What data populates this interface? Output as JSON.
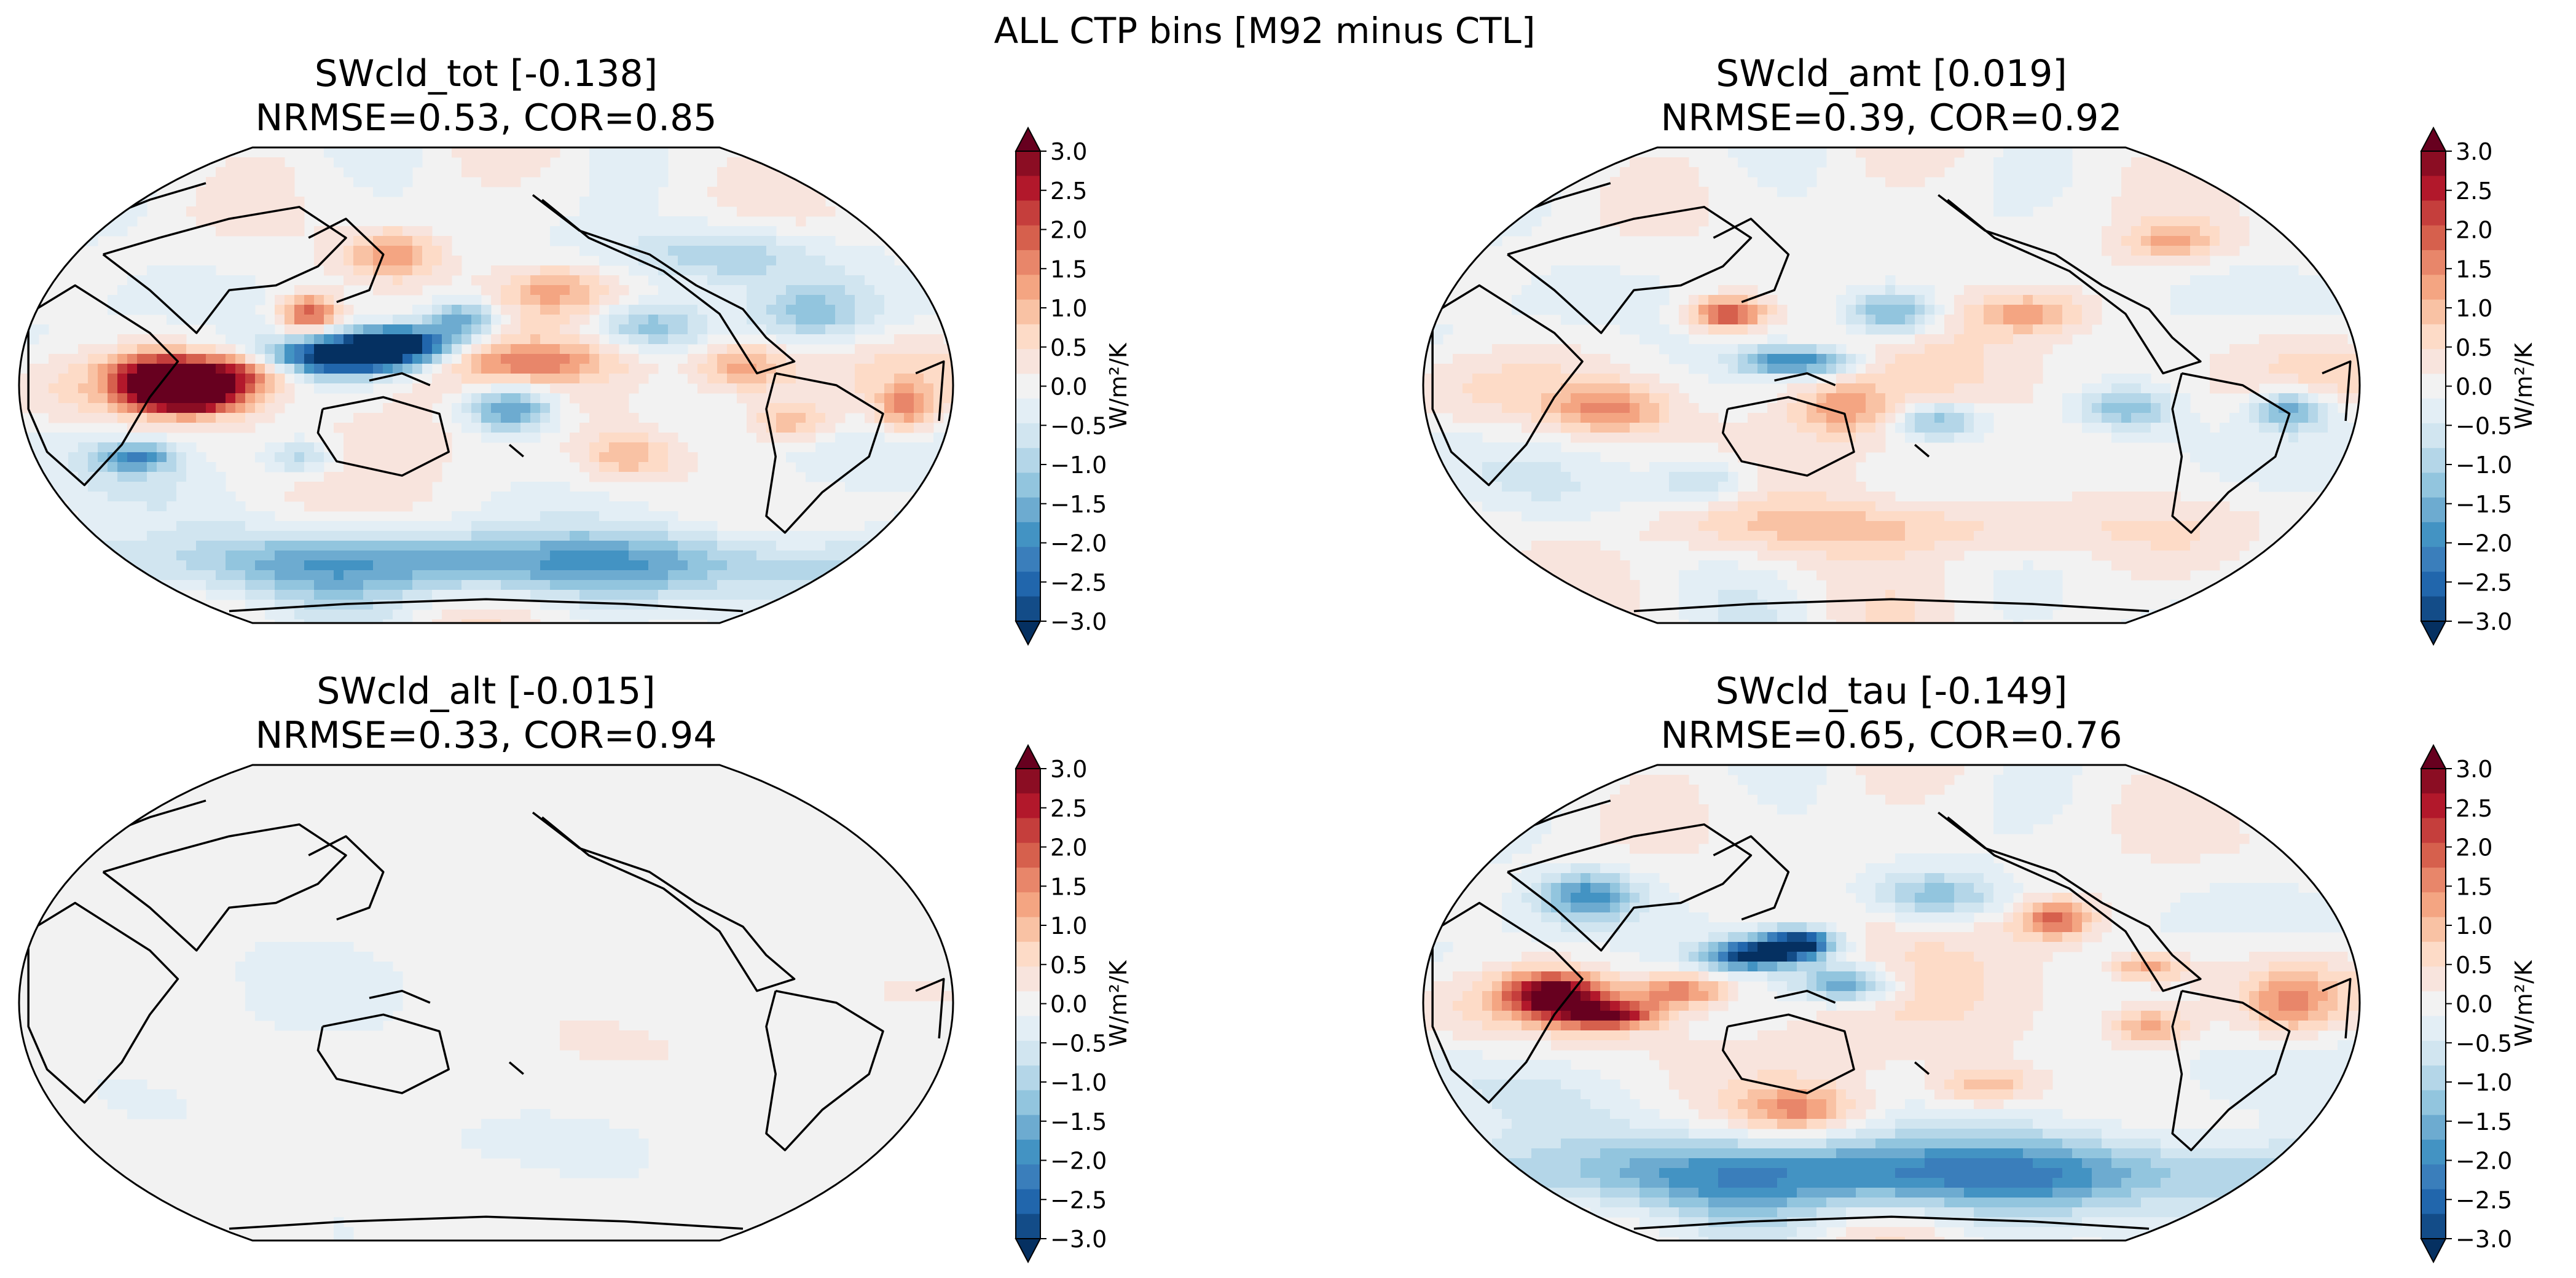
{
  "figure": {
    "suptitle": "ALL CTP bins [M92 minus CTL]"
  },
  "colorbar": {
    "ticks": [
      "3.0",
      "2.5",
      "2.0",
      "1.5",
      "1.0",
      "0.5",
      "0.0",
      "−0.5",
      "−1.0",
      "−1.5",
      "−2.0",
      "−2.5",
      "−3.0"
    ],
    "label": "W/m²/K",
    "vmin": -3.0,
    "vmax": 3.0,
    "colors": [
      "#053061",
      "#134c88",
      "#2166ac",
      "#3a7ebb",
      "#4393c3",
      "#6dabd0",
      "#92c5de",
      "#b4d6e8",
      "#d1e5f0",
      "#e3eef5",
      "#f2f2f2",
      "#f8e4dd",
      "#fddbc7",
      "#f9c2a4",
      "#f4a582",
      "#e8866a",
      "#d6604d",
      "#c53e3c",
      "#b2182b",
      "#8b0d23",
      "#67001f"
    ]
  },
  "panels": [
    {
      "title": "SWcld_tot [-0.138]",
      "subtitle": "NRMSE=0.53, COR=0.85",
      "global_mean": -0.138,
      "nrmse": 0.53,
      "cor": 0.85,
      "amp": 1.0
    },
    {
      "title": "SWcld_amt [0.019]",
      "subtitle": "NRMSE=0.39, COR=0.92",
      "global_mean": 0.019,
      "nrmse": 0.39,
      "cor": 0.92,
      "amp": 0.45
    },
    {
      "title": "SWcld_alt [-0.015]",
      "subtitle": "NRMSE=0.33, COR=0.94",
      "global_mean": -0.015,
      "nrmse": 0.33,
      "cor": 0.94,
      "amp": 0.12
    },
    {
      "title": "SWcld_tau [-0.149]",
      "subtitle": "NRMSE=0.65, COR=0.76",
      "global_mean": -0.149,
      "nrmse": 0.65,
      "cor": 0.76,
      "amp": 0.9
    }
  ]
}
